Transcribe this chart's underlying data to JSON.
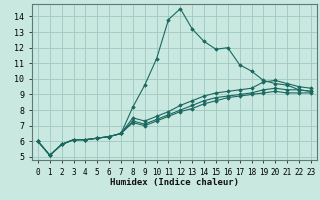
{
  "xlabel": "Humidex (Indice chaleur)",
  "bg_color": "#c8e8e0",
  "grid_color": "#a0c8c0",
  "line_color": "#1a6860",
  "xlim": [
    -0.5,
    23.5
  ],
  "ylim": [
    4.8,
    14.8
  ],
  "xticks": [
    0,
    1,
    2,
    3,
    4,
    5,
    6,
    7,
    8,
    9,
    10,
    11,
    12,
    13,
    14,
    15,
    16,
    17,
    18,
    19,
    20,
    21,
    22,
    23
  ],
  "yticks": [
    5,
    6,
    7,
    8,
    9,
    10,
    11,
    12,
    13,
    14
  ],
  "x": [
    0,
    1,
    2,
    3,
    4,
    5,
    6,
    7,
    8,
    9,
    10,
    11,
    12,
    13,
    14,
    15,
    16,
    17,
    18,
    19,
    20,
    21,
    22,
    23
  ],
  "lines": [
    [
      6.0,
      5.1,
      5.8,
      6.1,
      6.1,
      6.2,
      6.3,
      6.5,
      8.2,
      9.6,
      11.3,
      13.8,
      14.5,
      13.2,
      12.4,
      11.9,
      12.0,
      10.9,
      10.5,
      9.9,
      9.7,
      9.6,
      9.3,
      9.2
    ],
    [
      6.0,
      5.1,
      5.8,
      6.1,
      6.1,
      6.2,
      6.3,
      6.5,
      7.5,
      7.3,
      7.6,
      7.9,
      8.3,
      8.6,
      8.9,
      9.1,
      9.2,
      9.3,
      9.4,
      9.8,
      9.9,
      9.7,
      9.5,
      9.4
    ],
    [
      6.0,
      5.1,
      5.8,
      6.1,
      6.1,
      6.2,
      6.3,
      6.5,
      7.3,
      7.1,
      7.4,
      7.7,
      8.0,
      8.3,
      8.6,
      8.8,
      8.9,
      9.0,
      9.1,
      9.3,
      9.4,
      9.3,
      9.3,
      9.2
    ],
    [
      6.0,
      5.1,
      5.8,
      6.1,
      6.1,
      6.2,
      6.3,
      6.5,
      7.2,
      7.0,
      7.3,
      7.6,
      7.9,
      8.1,
      8.4,
      8.6,
      8.8,
      8.9,
      9.0,
      9.1,
      9.2,
      9.1,
      9.1,
      9.1
    ]
  ]
}
